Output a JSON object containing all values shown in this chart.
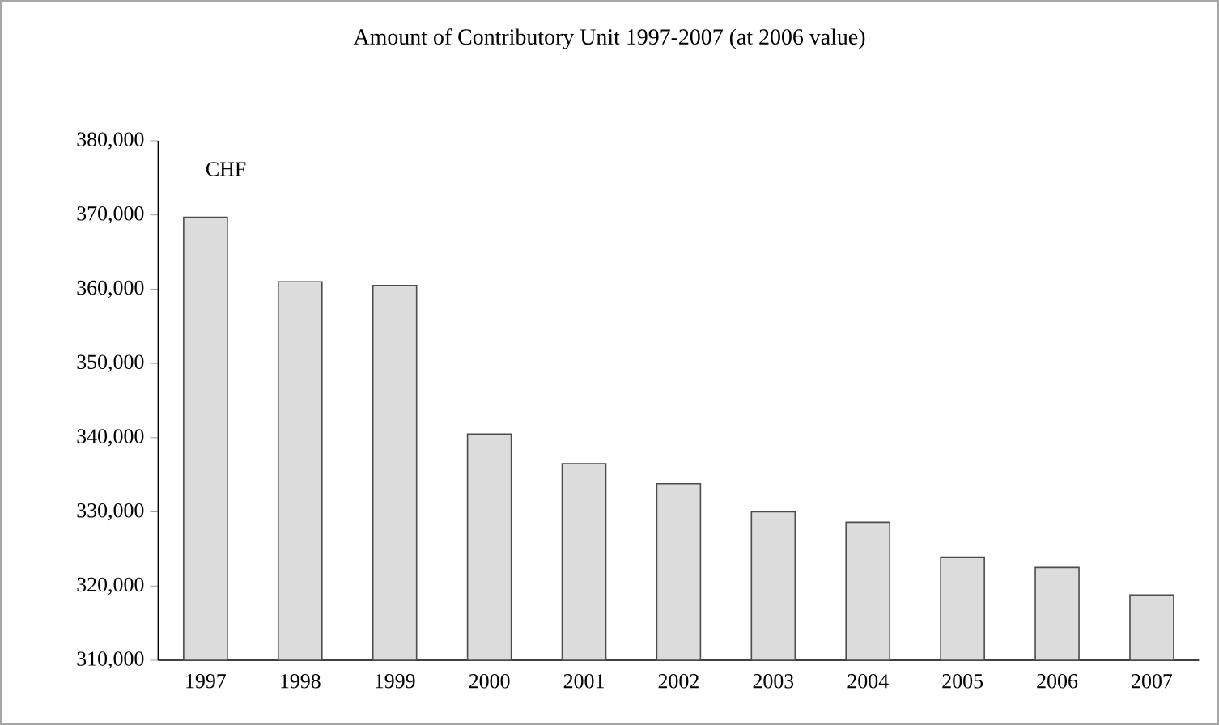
{
  "chart_data": {
    "type": "bar",
    "title": "Amount of Contributory Unit 1997-2007 (at 2006 value)",
    "categories": [
      "1997",
      "1998",
      "1999",
      "2000",
      "2001",
      "2002",
      "2003",
      "2004",
      "2005",
      "2006",
      "2007"
    ],
    "values": [
      369700,
      361000,
      360500,
      340500,
      336500,
      333800,
      330000,
      328600,
      323900,
      322500,
      318800
    ],
    "color": "#dcdcdc",
    "ylim": [
      310000,
      380000
    ],
    "yticks": [
      {
        "value": 310000,
        "label": "310,000"
      },
      {
        "value": 320000,
        "label": "320,000"
      },
      {
        "value": 330000,
        "label": "330,000"
      },
      {
        "value": 340000,
        "label": "340,000"
      },
      {
        "value": 350000,
        "label": "350,000"
      },
      {
        "value": 360000,
        "label": "360,000"
      },
      {
        "value": 370000,
        "label": "370,000"
      },
      {
        "value": 380000,
        "label": "380,000"
      }
    ],
    "annotations": [
      "CHF"
    ]
  }
}
